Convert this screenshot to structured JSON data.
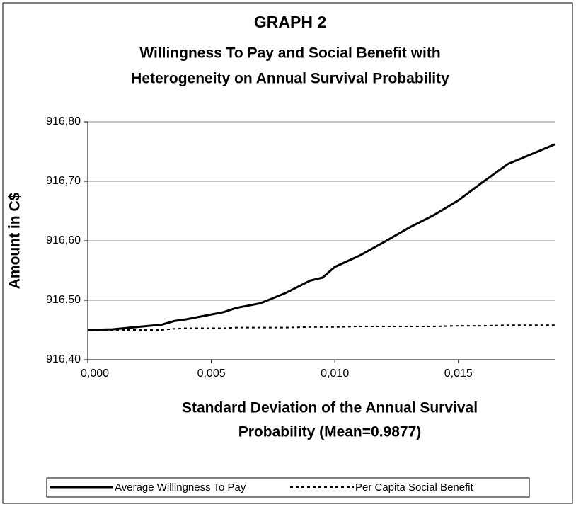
{
  "chart_data": {
    "type": "line",
    "title": "GRAPH 2",
    "subtitle": [
      "Willingness To Pay and Social Benefit with",
      "Heterogeneity on Annual Survival Probability"
    ],
    "xlabel": [
      "Standard Deviation of the Annual Survival",
      "Probability (Mean=0.9877)"
    ],
    "ylabel": "Amount in C$",
    "x": [
      0,
      0.001,
      0.002,
      0.003,
      0.0035,
      0.004,
      0.005,
      0.0055,
      0.006,
      0.007,
      0.008,
      0.009,
      0.0095,
      0.01,
      0.011,
      0.012,
      0.013,
      0.014,
      0.015,
      0.016,
      0.017,
      0.0189
    ],
    "series": [
      {
        "name": "Average Willingness To Pay",
        "color": "#000000",
        "dashed": false,
        "values": [
          916.45,
          916.451,
          916.455,
          916.459,
          916.465,
          916.468,
          916.476,
          916.48,
          916.487,
          916.495,
          916.512,
          916.533,
          916.538,
          916.556,
          916.575,
          916.598,
          916.622,
          916.643,
          916.668,
          916.699,
          916.729,
          916.762
        ]
      },
      {
        "name": "Per Capita Social Benefit",
        "color": "#000000",
        "dashed": true,
        "values": [
          916.45,
          916.45,
          916.45,
          916.45,
          916.452,
          916.453,
          916.453,
          916.453,
          916.454,
          916.454,
          916.454,
          916.455,
          916.455,
          916.455,
          916.456,
          916.456,
          916.456,
          916.456,
          916.457,
          916.457,
          916.458,
          916.458
        ]
      }
    ],
    "xlim": [
      0,
      0.0189
    ],
    "xticks": [
      {
        "value": 0,
        "label": "0,000"
      },
      {
        "value": 0.005,
        "label": "0,005"
      },
      {
        "value": 0.01,
        "label": "0,010"
      },
      {
        "value": 0.015,
        "label": "0,015"
      }
    ],
    "ylim": [
      916.4,
      916.8
    ],
    "yticks": [
      {
        "value": 916.4,
        "label": "916,40"
      },
      {
        "value": 916.5,
        "label": "916,50"
      },
      {
        "value": 916.6,
        "label": "916,60"
      },
      {
        "value": 916.7,
        "label": "916,70"
      },
      {
        "value": 916.8,
        "label": "916,80"
      }
    ],
    "grid": true,
    "legend": "bottom"
  }
}
